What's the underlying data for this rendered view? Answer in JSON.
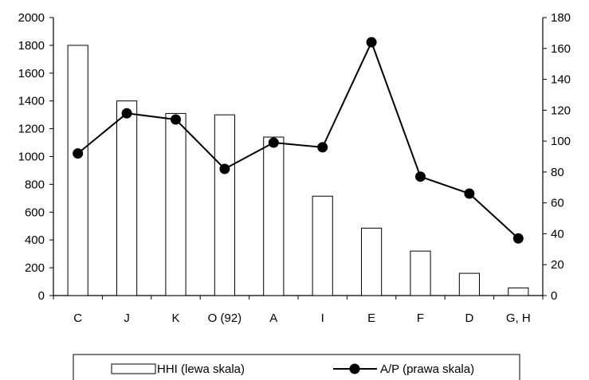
{
  "chart_data": {
    "type": "bar",
    "categories": [
      "C",
      "J",
      "K",
      "O (92)",
      "A",
      "I",
      "E",
      "F",
      "D",
      "G, H"
    ],
    "series": [
      {
        "name": "HHI (lewa skala)",
        "type": "bar",
        "axis": "left",
        "values": [
          1800,
          1400,
          1310,
          1300,
          1140,
          715,
          485,
          320,
          160,
          55
        ]
      },
      {
        "name": "A/P (prawa skala)",
        "type": "line",
        "axis": "right",
        "values": [
          92,
          118,
          114,
          82,
          99,
          96,
          164,
          77,
          66,
          37
        ]
      }
    ],
    "y_left": {
      "min": 0,
      "max": 2000,
      "step": 200,
      "ticks": [
        "0",
        "200",
        "400",
        "600",
        "800",
        "1000",
        "1200",
        "1400",
        "1600",
        "1800",
        "2000"
      ]
    },
    "y_right": {
      "min": 0,
      "max": 180,
      "step": 20,
      "ticks": [
        "0",
        "20",
        "40",
        "60",
        "80",
        "100",
        "120",
        "140",
        "160",
        "180"
      ]
    },
    "grid": false,
    "legend_position": "bottom",
    "colors": {
      "bar_fill": "#ffffff",
      "bar_stroke": "#000000",
      "line": "#000000",
      "marker": "#000000"
    }
  }
}
